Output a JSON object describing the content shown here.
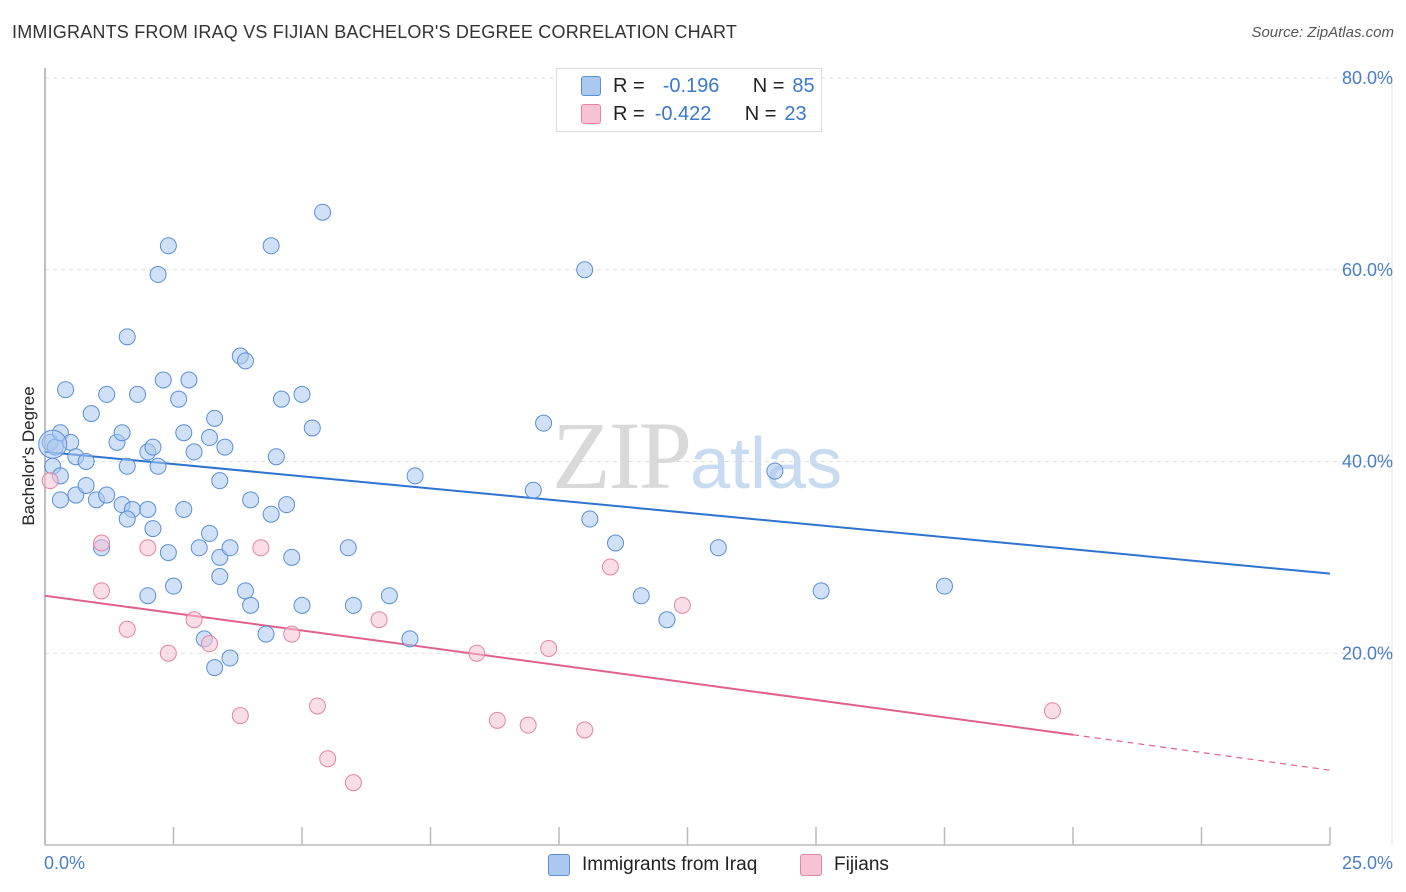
{
  "title": "IMMIGRANTS FROM IRAQ VS FIJIAN BACHELOR'S DEGREE CORRELATION CHART",
  "source": "Source: ZipAtlas.com",
  "watermark": {
    "zip": "ZIP",
    "atlas": "atlas"
  },
  "colors": {
    "blue_fill": "#aac8f0",
    "blue_stroke": "#5b8fd6",
    "blue_line": "#2f73d0",
    "pink_fill": "#f6c2d4",
    "pink_stroke": "#e6849f",
    "pink_line": "#e0608e",
    "tick_text": "#4a7fc8",
    "grid": "#dddddd"
  },
  "legend": {
    "rows": [
      {
        "r_label": "R =",
        "r_value": "-0.196",
        "n_label": "N =",
        "n_value": "85"
      },
      {
        "r_label": "R =",
        "r_value": "-0.422",
        "n_label": "N =",
        "n_value": "23"
      }
    ]
  },
  "chart_data": {
    "type": "scatter",
    "title": "IMMIGRANTS FROM IRAQ VS FIJIAN BACHELOR'S DEGREE CORRELATION CHART",
    "xlabel": "",
    "ylabel": "Bachelor's Degree",
    "xlim": [
      0,
      25
    ],
    "ylim": [
      0,
      80
    ],
    "x_tick_labels": [
      "0.0%",
      "25.0%"
    ],
    "y_ticks": [
      20,
      40,
      60,
      80
    ],
    "y_tick_labels": [
      "20.0%",
      "40.0%",
      "60.0%",
      "80.0%"
    ],
    "legend": [
      "Immigrants from Iraq",
      "Fijians"
    ],
    "series": [
      {
        "name": "Immigrants from Iraq",
        "color": "#aac8f0",
        "trend": {
          "x": [
            0,
            25
          ],
          "y": [
            41.0,
            28.3
          ]
        },
        "points": [
          [
            0.1,
            42
          ],
          [
            0.2,
            41.5
          ],
          [
            0.15,
            39.5
          ],
          [
            0.3,
            43
          ],
          [
            0.5,
            42
          ],
          [
            0.6,
            40.5
          ],
          [
            0.8,
            40
          ],
          [
            0.4,
            47.5
          ],
          [
            1.2,
            47
          ],
          [
            0.9,
            45
          ],
          [
            1.4,
            42
          ],
          [
            1.5,
            43
          ],
          [
            1.6,
            39.5
          ],
          [
            1.8,
            47
          ],
          [
            2.0,
            41
          ],
          [
            2.1,
            41.5
          ],
          [
            2.2,
            39.5
          ],
          [
            2.3,
            48.5
          ],
          [
            2.6,
            46.5
          ],
          [
            2.7,
            43
          ],
          [
            2.8,
            48.5
          ],
          [
            2.9,
            41
          ],
          [
            3.2,
            42.5
          ],
          [
            3.3,
            44.5
          ],
          [
            3.5,
            41.5
          ],
          [
            3.4,
            38
          ],
          [
            3.8,
            51
          ],
          [
            3.9,
            50.5
          ],
          [
            4.5,
            40.5
          ],
          [
            5.0,
            47
          ],
          [
            5.2,
            43.5
          ],
          [
            0.3,
            36
          ],
          [
            0.6,
            36.5
          ],
          [
            0.8,
            37.5
          ],
          [
            1.0,
            36
          ],
          [
            1.2,
            36.5
          ],
          [
            1.5,
            35.5
          ],
          [
            1.7,
            35
          ],
          [
            2.0,
            35
          ],
          [
            1.6,
            34
          ],
          [
            2.1,
            33
          ],
          [
            2.7,
            35
          ],
          [
            3.2,
            32.5
          ],
          [
            3.0,
            31
          ],
          [
            3.4,
            30
          ],
          [
            3.6,
            31
          ],
          [
            4.0,
            36
          ],
          [
            4.4,
            34.5
          ],
          [
            4.7,
            35.5
          ],
          [
            1.1,
            31
          ],
          [
            2.4,
            30.5
          ],
          [
            2.5,
            27
          ],
          [
            3.4,
            28
          ],
          [
            3.9,
            26.5
          ],
          [
            4.8,
            30
          ],
          [
            5.9,
            31
          ],
          [
            5.0,
            25
          ],
          [
            4.0,
            25
          ],
          [
            4.3,
            22
          ],
          [
            3.1,
            21.5
          ],
          [
            3.6,
            19.5
          ],
          [
            2.0,
            26
          ],
          [
            3.3,
            18.5
          ],
          [
            6.7,
            26
          ],
          [
            7.1,
            21.5
          ],
          [
            7.2,
            38.5
          ],
          [
            9.5,
            37
          ],
          [
            9.7,
            44
          ],
          [
            10.6,
            34
          ],
          [
            11.1,
            31.5
          ],
          [
            11.6,
            26
          ],
          [
            12.1,
            23.5
          ],
          [
            13.1,
            31
          ],
          [
            14.2,
            39
          ],
          [
            15.1,
            26.5
          ],
          [
            17.5,
            27
          ],
          [
            1.6,
            53
          ],
          [
            2.2,
            59.5
          ],
          [
            2.4,
            62.5
          ],
          [
            4.4,
            62.5
          ],
          [
            5.4,
            66
          ],
          [
            10.5,
            60
          ],
          [
            4.6,
            46.5
          ],
          [
            6.0,
            25
          ],
          [
            0.3,
            38.5
          ]
        ]
      },
      {
        "name": "Fijians",
        "color": "#f6c2d4",
        "trend": {
          "x": [
            0,
            20
          ],
          "y": [
            26.0,
            11.5
          ]
        },
        "trend_extension": {
          "x": [
            20,
            25
          ],
          "y": [
            11.5,
            7.8
          ]
        },
        "points": [
          [
            0.1,
            38
          ],
          [
            1.1,
            31.5
          ],
          [
            1.1,
            26.5
          ],
          [
            1.6,
            22.5
          ],
          [
            2.0,
            31
          ],
          [
            2.4,
            20
          ],
          [
            2.9,
            23.5
          ],
          [
            3.2,
            21
          ],
          [
            3.8,
            13.5
          ],
          [
            4.2,
            31
          ],
          [
            4.8,
            22
          ],
          [
            5.3,
            14.5
          ],
          [
            5.5,
            9
          ],
          [
            6.0,
            6.5
          ],
          [
            6.5,
            23.5
          ],
          [
            8.4,
            20
          ],
          [
            8.8,
            13
          ],
          [
            9.4,
            12.5
          ],
          [
            9.8,
            20.5
          ],
          [
            10.5,
            12
          ],
          [
            11.0,
            29
          ],
          [
            12.4,
            25
          ],
          [
            19.6,
            14
          ]
        ]
      }
    ]
  }
}
